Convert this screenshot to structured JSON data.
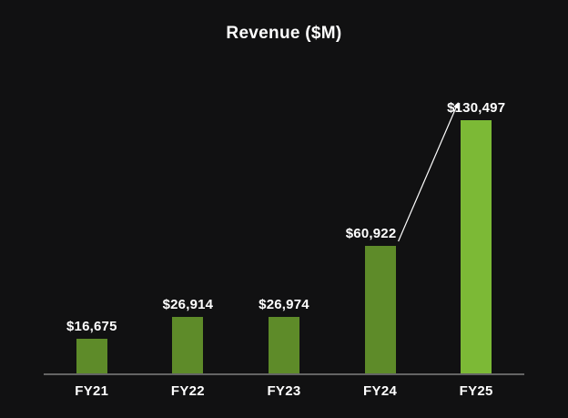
{
  "chart_data": {
    "type": "bar",
    "title": "Revenue ($M)",
    "categories": [
      "FY21",
      "FY22",
      "FY23",
      "FY24",
      "FY25"
    ],
    "values": [
      16675,
      26914,
      26974,
      60922,
      130497
    ],
    "value_labels": [
      "$16,675",
      "$26,914",
      "$26,974",
      "$60,922",
      "$130,497"
    ],
    "xlabel": "",
    "ylabel": "",
    "ylim": [
      0,
      130497
    ],
    "grid": false,
    "legend": false,
    "highlight_index": 4,
    "annotation": {
      "type": "arrow",
      "from_index": 3,
      "to_index": 4,
      "color": "#ffffff"
    }
  },
  "colors": {
    "background": "#111112",
    "bar_default": "#5e8b29",
    "bar_highlight": "#7cb936",
    "axis_line": "#646464",
    "text": "#ffffff"
  }
}
